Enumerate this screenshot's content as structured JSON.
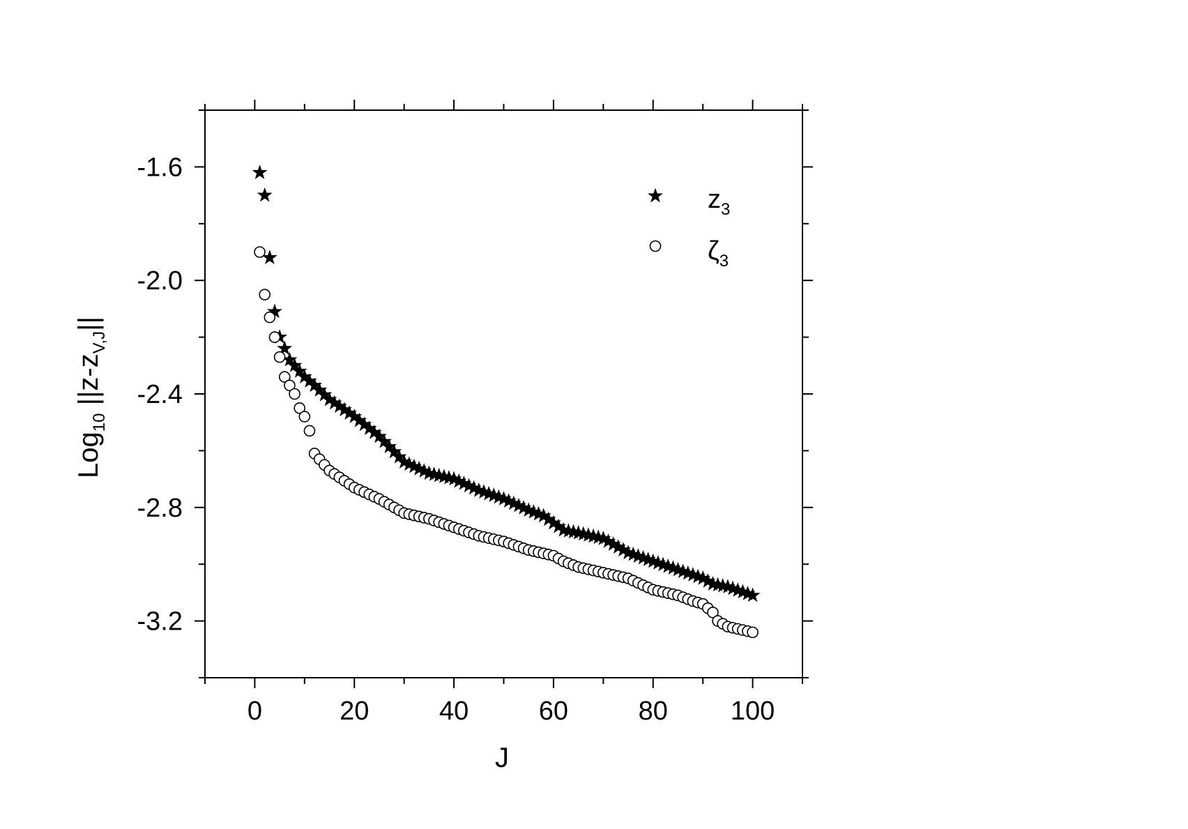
{
  "chart_data": {
    "type": "scatter",
    "xlabel": "J",
    "ylabel": {
      "main": "Log",
      "sub1": "10",
      "mid": " ||z-z",
      "sub2": "V,J",
      "end": "||"
    },
    "xlim": [
      -10,
      110
    ],
    "ylim": [
      -3.4,
      -1.4
    ],
    "x_ticks": [
      0,
      20,
      40,
      60,
      80,
      100
    ],
    "x_tick_labels": [
      "0",
      "20",
      "40",
      "60",
      "80",
      "100"
    ],
    "y_ticks": [
      -1.6,
      -2.0,
      -2.4,
      -2.8,
      -3.2
    ],
    "y_tick_labels": [
      "-1.6",
      "-2.0",
      "-2.4",
      "-2.8",
      "-3.2"
    ],
    "grid": false,
    "legend_position": "top-right",
    "series": [
      {
        "name": "z",
        "name_sub": "3",
        "marker": "star-filled",
        "anchors": [
          [
            1,
            -1.62
          ],
          [
            2,
            -1.7
          ],
          [
            3,
            -1.92
          ],
          [
            4,
            -2.11
          ],
          [
            5,
            -2.2
          ],
          [
            6,
            -2.24
          ],
          [
            7,
            -2.28
          ],
          [
            8,
            -2.3
          ],
          [
            9,
            -2.32
          ],
          [
            10,
            -2.34
          ],
          [
            12,
            -2.37
          ],
          [
            15,
            -2.42
          ],
          [
            20,
            -2.48
          ],
          [
            25,
            -2.55
          ],
          [
            30,
            -2.64
          ],
          [
            35,
            -2.68
          ],
          [
            40,
            -2.7
          ],
          [
            45,
            -2.74
          ],
          [
            50,
            -2.77
          ],
          [
            55,
            -2.81
          ],
          [
            58,
            -2.83
          ],
          [
            62,
            -2.88
          ],
          [
            65,
            -2.89
          ],
          [
            70,
            -2.91
          ],
          [
            75,
            -2.96
          ],
          [
            80,
            -2.99
          ],
          [
            85,
            -3.02
          ],
          [
            90,
            -3.05
          ],
          [
            92,
            -3.07
          ],
          [
            95,
            -3.08
          ],
          [
            100,
            -3.11
          ]
        ]
      },
      {
        "name": "ζ",
        "name_sub": "3",
        "marker": "circle-open",
        "anchors": [
          [
            1,
            -1.9
          ],
          [
            2,
            -2.05
          ],
          [
            3,
            -2.13
          ],
          [
            4,
            -2.2
          ],
          [
            5,
            -2.27
          ],
          [
            6,
            -2.34
          ],
          [
            7,
            -2.37
          ],
          [
            8,
            -2.4
          ],
          [
            9,
            -2.45
          ],
          [
            10,
            -2.48
          ],
          [
            11,
            -2.53
          ],
          [
            12,
            -2.61
          ],
          [
            13,
            -2.63
          ],
          [
            15,
            -2.67
          ],
          [
            20,
            -2.73
          ],
          [
            25,
            -2.77
          ],
          [
            30,
            -2.82
          ],
          [
            35,
            -2.84
          ],
          [
            40,
            -2.87
          ],
          [
            45,
            -2.9
          ],
          [
            50,
            -2.92
          ],
          [
            55,
            -2.95
          ],
          [
            60,
            -2.97
          ],
          [
            62,
            -2.99
          ],
          [
            65,
            -3.01
          ],
          [
            70,
            -3.03
          ],
          [
            75,
            -3.05
          ],
          [
            80,
            -3.09
          ],
          [
            85,
            -3.11
          ],
          [
            88,
            -3.13
          ],
          [
            90,
            -3.14
          ],
          [
            92,
            -3.17
          ],
          [
            93,
            -3.2
          ],
          [
            95,
            -3.22
          ],
          [
            100,
            -3.24
          ]
        ]
      }
    ]
  }
}
